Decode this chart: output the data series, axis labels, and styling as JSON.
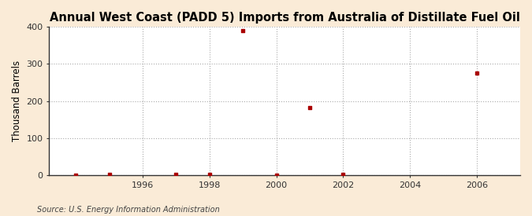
{
  "title": "Annual West Coast (PADD 5) Imports from Australia of Distillate Fuel Oil",
  "ylabel": "Thousand Barrels",
  "source": "Source: U.S. Energy Information Administration",
  "background_color": "#faebd7",
  "plot_bg_color": "#ffffff",
  "grid_color": "#aaaaaa",
  "marker_color": "#aa0000",
  "x_data": [
    1994,
    1995,
    1997,
    1998,
    1999,
    2000,
    2001,
    2002,
    2006
  ],
  "y_data": [
    0,
    2,
    3,
    2,
    390,
    0,
    183,
    2,
    275
  ],
  "xlim": [
    1993.2,
    2007.3
  ],
  "ylim": [
    0,
    400
  ],
  "yticks": [
    0,
    100,
    200,
    300,
    400
  ],
  "xticks": [
    1996,
    1998,
    2000,
    2002,
    2004,
    2006
  ],
  "title_fontsize": 10.5,
  "ylabel_fontsize": 8.5,
  "tick_fontsize": 8,
  "source_fontsize": 7,
  "marker_size": 3.5
}
